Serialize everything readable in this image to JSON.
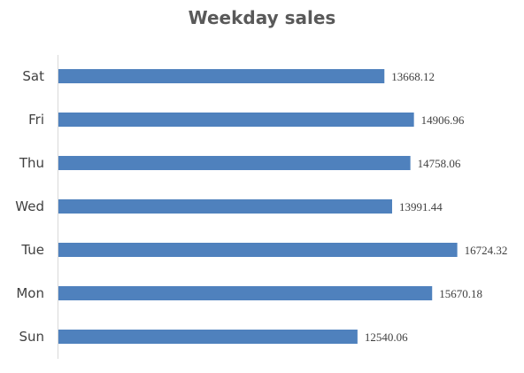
{
  "chart_data": {
    "type": "bar",
    "orientation": "horizontal",
    "title": "Weekday sales",
    "categories": [
      "Sat",
      "Fri",
      "Thu",
      "Wed",
      "Tue",
      "Mon",
      "Sun"
    ],
    "values": [
      13668.12,
      14906.96,
      14758.06,
      13991.44,
      16724.32,
      15670.18,
      12540.06
    ],
    "value_labels": [
      "13668.12",
      "14906.96",
      "14758.06",
      "13991.44",
      "16724.32",
      "15670.18",
      "12540.06"
    ],
    "xlim": [
      0,
      18000
    ],
    "xlabel": "",
    "ylabel": "",
    "grid": false,
    "legend": "none",
    "bar_color": "#4f81bd"
  }
}
